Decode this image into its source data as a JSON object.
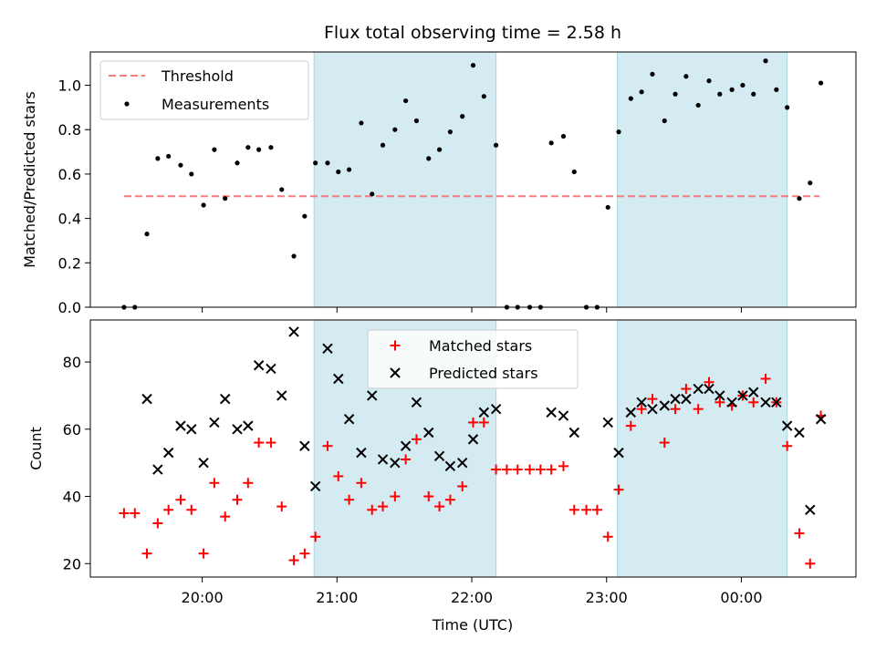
{
  "chart_data": {
    "type": "scatter",
    "title": "Flux total observing time = 2.58 h",
    "xlabel": "Time (UTC)",
    "x_unit": "hours (UTC, continuing past midnight as 24.x)",
    "x_range": [
      19.17,
      24.85
    ],
    "x_ticks": [
      {
        "value": 20,
        "label": "20:00"
      },
      {
        "value": 21,
        "label": "21:00"
      },
      {
        "value": 22,
        "label": "22:00"
      },
      {
        "value": 23,
        "label": "23:00"
      },
      {
        "value": 24,
        "label": "00:00"
      }
    ],
    "shaded_intervals": [
      [
        20.83,
        22.18
      ],
      [
        23.08,
        24.34
      ]
    ],
    "shade_color": "#d4ebf1",
    "top_panel": {
      "ylabel": "Matched/Predicted stars",
      "ylim": [
        0,
        1.15
      ],
      "y_ticks": [
        0.0,
        0.2,
        0.4,
        0.6,
        0.8,
        1.0
      ],
      "y_tick_labels": [
        "0.0",
        "0.2",
        "0.4",
        "0.6",
        "0.8",
        "1.0"
      ],
      "legend": {
        "placement": "top-left",
        "threshold_label": "Threshold",
        "measurements_label": "Measurements"
      },
      "threshold": {
        "value": 0.5,
        "x_start": 19.42,
        "x_end": 24.58,
        "color": "#f47c7c"
      },
      "measurements": {
        "color": "#000000",
        "x": [
          19.42,
          19.5,
          19.59,
          19.67,
          19.75,
          19.84,
          19.92,
          20.01,
          20.09,
          20.17,
          20.26,
          20.34,
          20.42,
          20.51,
          20.59,
          20.68,
          20.76,
          20.84,
          20.93,
          21.01,
          21.09,
          21.18,
          21.26,
          21.34,
          21.43,
          21.51,
          21.59,
          21.68,
          21.76,
          21.84,
          21.93,
          22.01,
          22.09,
          22.18,
          22.26,
          22.34,
          22.43,
          22.51,
          22.59,
          22.68,
          22.76,
          22.85,
          22.93,
          23.01,
          23.09,
          23.18,
          23.26,
          23.34,
          23.43,
          23.51,
          23.59,
          23.68,
          23.76,
          23.84,
          23.93,
          24.01,
          24.09,
          24.18,
          24.26,
          24.34,
          24.43,
          24.51,
          24.59
        ],
        "y": [
          0.0,
          0.0,
          0.33,
          0.67,
          0.68,
          0.64,
          0.6,
          0.46,
          0.71,
          0.49,
          0.65,
          0.72,
          0.71,
          0.72,
          0.53,
          0.23,
          0.41,
          0.65,
          0.65,
          0.61,
          0.62,
          0.83,
          0.51,
          0.73,
          0.8,
          0.93,
          0.84,
          0.67,
          0.71,
          0.79,
          0.86,
          1.09,
          0.95,
          0.73,
          0.0,
          0.0,
          0.0,
          0.0,
          0.74,
          0.77,
          0.61,
          0.0,
          0.0,
          0.45,
          0.79,
          0.94,
          0.97,
          1.05,
          0.84,
          0.96,
          1.04,
          0.91,
          1.02,
          0.96,
          0.98,
          1.0,
          0.96,
          1.11,
          0.98,
          0.9,
          0.49,
          0.56,
          1.01
        ]
      }
    },
    "bottom_panel": {
      "ylabel": "Count",
      "ylim": [
        16,
        92.5
      ],
      "y_ticks": [
        20,
        40,
        60,
        80
      ],
      "y_tick_labels": [
        "20",
        "40",
        "60",
        "80"
      ],
      "legend": {
        "placement": "upper-center",
        "matched_label": "Matched stars",
        "predicted_label": "Predicted stars"
      },
      "series": [
        {
          "name": "Matched stars",
          "marker": "plus",
          "color": "#ff0000",
          "x": [
            19.42,
            19.5,
            19.59,
            19.67,
            19.75,
            19.84,
            19.92,
            20.01,
            20.09,
            20.17,
            20.26,
            20.34,
            20.42,
            20.51,
            20.59,
            20.68,
            20.76,
            20.84,
            20.93,
            21.01,
            21.09,
            21.18,
            21.26,
            21.34,
            21.43,
            21.51,
            21.59,
            21.68,
            21.76,
            21.84,
            21.93,
            22.01,
            22.09,
            22.18,
            22.26,
            22.34,
            22.43,
            22.51,
            22.59,
            22.68,
            22.76,
            22.85,
            22.93,
            23.01,
            23.09,
            23.18,
            23.26,
            23.34,
            23.43,
            23.51,
            23.59,
            23.68,
            23.76,
            23.84,
            23.93,
            24.01,
            24.09,
            24.18,
            24.26,
            24.34,
            24.43,
            24.51,
            24.59
          ],
          "values": [
            35,
            35,
            23,
            32,
            36,
            39,
            36,
            23,
            44,
            34,
            39,
            44,
            56,
            56,
            37,
            21,
            23,
            28,
            55,
            46,
            39,
            44,
            36,
            37,
            40,
            51,
            57,
            40,
            37,
            39,
            43,
            62,
            62,
            48,
            48,
            48,
            48,
            48,
            48,
            49,
            36,
            36,
            36,
            28,
            42,
            61,
            66,
            69,
            56,
            66,
            72,
            66,
            74,
            68,
            67,
            70,
            68,
            75,
            68,
            55,
            29,
            20,
            64
          ]
        },
        {
          "name": "Predicted stars",
          "marker": "x",
          "color": "#000000",
          "x": [
            19.59,
            19.67,
            19.75,
            19.84,
            19.92,
            20.01,
            20.09,
            20.17,
            20.26,
            20.34,
            20.42,
            20.51,
            20.59,
            20.68,
            20.76,
            20.84,
            20.93,
            21.01,
            21.09,
            21.18,
            21.26,
            21.34,
            21.43,
            21.51,
            21.59,
            21.68,
            21.76,
            21.84,
            21.93,
            22.01,
            22.09,
            22.18,
            22.59,
            22.68,
            22.76,
            23.01,
            23.09,
            23.18,
            23.26,
            23.34,
            23.43,
            23.51,
            23.59,
            23.68,
            23.76,
            23.84,
            23.93,
            24.01,
            24.09,
            24.18,
            24.26,
            24.34,
            24.43,
            24.51,
            24.59
          ],
          "values": [
            69,
            48,
            53,
            61,
            60,
            50,
            62,
            69,
            60,
            61,
            79,
            78,
            70,
            89,
            55,
            43,
            84,
            75,
            63,
            53,
            70,
            51,
            50,
            55,
            68,
            59,
            52,
            49,
            50,
            57,
            65,
            66,
            65,
            64,
            59,
            62,
            53,
            65,
            68,
            66,
            67,
            69,
            69,
            72,
            72,
            70,
            68,
            70,
            71,
            68,
            68,
            61,
            59,
            36,
            63
          ]
        }
      ]
    }
  }
}
